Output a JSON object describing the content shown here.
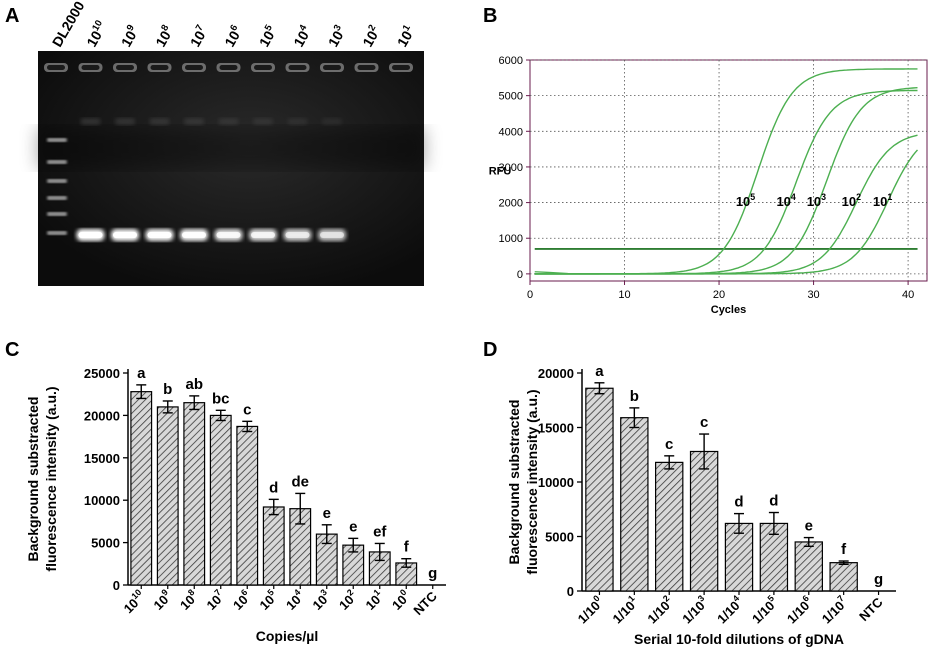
{
  "panels": {
    "A": {
      "label": "A",
      "lanes": [
        {
          "main": "DL2000",
          "sup": ""
        },
        {
          "main": "10",
          "sup": "10"
        },
        {
          "main": "10",
          "sup": "9"
        },
        {
          "main": "10",
          "sup": "8"
        },
        {
          "main": "10",
          "sup": "7"
        },
        {
          "main": "10",
          "sup": "6"
        },
        {
          "main": "10",
          "sup": "5"
        },
        {
          "main": "10",
          "sup": "4"
        },
        {
          "main": "10",
          "sup": "3"
        },
        {
          "main": "10",
          "sup": "2"
        },
        {
          "main": "10",
          "sup": "1"
        }
      ]
    },
    "B": {
      "label": "B"
    },
    "C": {
      "label": "C"
    },
    "D": {
      "label": "D"
    }
  },
  "chart_data": [
    {
      "panel": "B",
      "type": "line",
      "xlabel": "Cycles",
      "ylabel": "RFU",
      "xlim": [
        0,
        42
      ],
      "ylim": [
        -200,
        6000
      ],
      "xticks": [
        0,
        10,
        20,
        30,
        40
      ],
      "yticks": [
        0,
        1000,
        2000,
        3000,
        4000,
        5000,
        6000
      ],
      "grid": "dotted",
      "threshold": 700,
      "line_color": "#4caf50",
      "axis_color": "#6a1b4d",
      "series": [
        {
          "name": "10^5",
          "label_main": "10",
          "label_sup": "5",
          "ct": 20.5,
          "plateau": 5750,
          "end_cycle": 41
        },
        {
          "name": "10^4",
          "label_main": "10",
          "label_sup": "4",
          "ct": 24.8,
          "plateau": 5150,
          "end_cycle": 41
        },
        {
          "name": "10^3",
          "label_main": "10",
          "label_sup": "3",
          "ct": 28.0,
          "plateau": 5250,
          "end_cycle": 41
        },
        {
          "name": "10^2",
          "label_main": "10",
          "label_sup": "2",
          "ct": 31.7,
          "plateau": 4000,
          "end_cycle": 41
        },
        {
          "name": "10^1",
          "label_main": "10",
          "label_sup": "1",
          "ct": 35.0,
          "plateau": 4100,
          "end_cycle": 41
        }
      ]
    },
    {
      "panel": "C",
      "type": "bar",
      "xlabel": "Copies/µl",
      "ylabel_lines": [
        "Background substracted",
        "fluorescence intensity (a.u.)"
      ],
      "ylim": [
        0,
        25000
      ],
      "yticks": [
        0,
        5000,
        10000,
        15000,
        20000,
        25000
      ],
      "categories": [
        {
          "main": "10",
          "sup": "10"
        },
        {
          "main": "10",
          "sup": "9"
        },
        {
          "main": "10",
          "sup": "8"
        },
        {
          "main": "10",
          "sup": "7"
        },
        {
          "main": "10",
          "sup": "6"
        },
        {
          "main": "10",
          "sup": "5"
        },
        {
          "main": "10",
          "sup": "4"
        },
        {
          "main": "10",
          "sup": "3"
        },
        {
          "main": "10",
          "sup": "2"
        },
        {
          "main": "10",
          "sup": "1"
        },
        {
          "main": "10",
          "sup": "0"
        },
        {
          "main": "NTC",
          "sup": ""
        }
      ],
      "values": [
        22800,
        21000,
        21500,
        20000,
        18700,
        9200,
        9000,
        6000,
        4700,
        3900,
        2600,
        0
      ],
      "errors": [
        800,
        700,
        800,
        600,
        600,
        900,
        1800,
        1100,
        800,
        1000,
        500,
        0
      ],
      "letters": [
        "a",
        "b",
        "ab",
        "bc",
        "c",
        "d",
        "de",
        "e",
        "e",
        "ef",
        "f",
        "g"
      ]
    },
    {
      "panel": "D",
      "type": "bar",
      "xlabel": "Serial 10-fold dilutions of gDNA",
      "ylabel_lines": [
        "Background substracted",
        "fluorescence intensity (a.u.)"
      ],
      "ylim": [
        0,
        20000
      ],
      "yticks": [
        0,
        5000,
        10000,
        15000,
        20000
      ],
      "categories": [
        {
          "main": "1/10",
          "sup": "0"
        },
        {
          "main": "1/10",
          "sup": "1"
        },
        {
          "main": "1/10",
          "sup": "2"
        },
        {
          "main": "1/10",
          "sup": "3"
        },
        {
          "main": "1/10",
          "sup": "4"
        },
        {
          "main": "1/10",
          "sup": "5"
        },
        {
          "main": "1/10",
          "sup": "6"
        },
        {
          "main": "1/10",
          "sup": "7"
        },
        {
          "main": "NTC",
          "sup": ""
        }
      ],
      "values": [
        18600,
        15900,
        11800,
        12800,
        6200,
        6200,
        4500,
        2600,
        0
      ],
      "errors": [
        500,
        900,
        600,
        1600,
        900,
        1000,
        400,
        150,
        0
      ],
      "letters": [
        "a",
        "b",
        "c",
        "c",
        "d",
        "d",
        "e",
        "f",
        "g"
      ]
    }
  ]
}
